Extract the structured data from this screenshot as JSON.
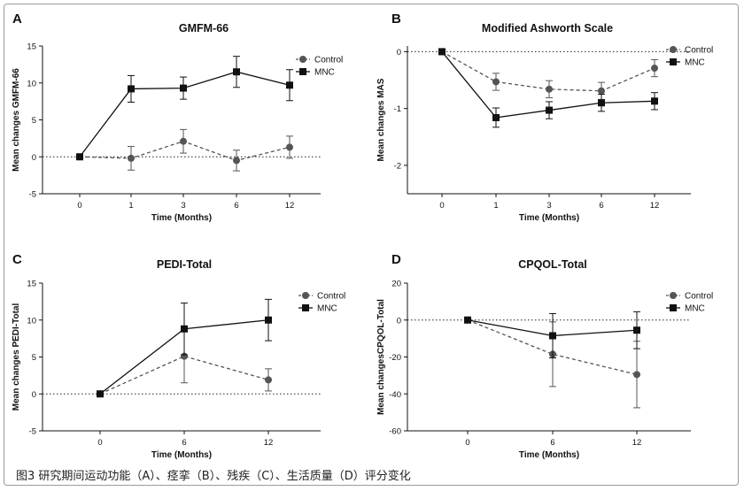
{
  "caption": "图3 研究期间运动功能（A）、痉挛（B）、残疾（C）、生活质量（D）评分变化",
  "colors": {
    "control": "#555555",
    "mnc": "#111111",
    "axis": "#111111"
  },
  "chart_data": [
    {
      "panel": "A",
      "type": "line",
      "title": "GMFM-66",
      "xlabel": "Time (Months)",
      "ylabel": "Mean changes GMFM-66",
      "categories": [
        "0",
        "1",
        "3",
        "6",
        "12"
      ],
      "yticks": [
        -5,
        0,
        5,
        10,
        15
      ],
      "ylim": [
        -5,
        15
      ],
      "zero_line": true,
      "legend_position": "top-right",
      "series": [
        {
          "name": "Control",
          "marker": "circle",
          "dashed": true,
          "values": [
            0,
            -0.2,
            2.1,
            -0.5,
            1.3
          ],
          "errors": [
            0,
            1.6,
            1.6,
            1.4,
            1.5
          ]
        },
        {
          "name": "MNC",
          "marker": "square",
          "dashed": false,
          "values": [
            0,
            9.2,
            9.3,
            11.5,
            9.7
          ],
          "errors": [
            0,
            1.8,
            1.5,
            2.1,
            2.1
          ]
        }
      ]
    },
    {
      "panel": "B",
      "type": "line",
      "title": "Modified Ashworth Scale",
      "xlabel": "Time (Months)",
      "ylabel": "Mean changes MAS",
      "categories": [
        "0",
        "1",
        "3",
        "6",
        "12"
      ],
      "yticks": [
        -2,
        -1,
        0
      ],
      "ylim": [
        -2.5,
        0.1
      ],
      "zero_line": true,
      "legend_position": "top-right",
      "series": [
        {
          "name": "Control",
          "marker": "circle",
          "dashed": true,
          "values": [
            0,
            -0.53,
            -0.66,
            -0.69,
            -0.29
          ],
          "errors": [
            0,
            0.15,
            0.15,
            0.15,
            0.15
          ]
        },
        {
          "name": "MNC",
          "marker": "square",
          "dashed": false,
          "values": [
            0,
            -1.16,
            -1.03,
            -0.9,
            -0.87
          ],
          "errors": [
            0,
            0.17,
            0.15,
            0.15,
            0.15
          ]
        }
      ]
    },
    {
      "panel": "C",
      "type": "line",
      "title": "PEDI-Total",
      "xlabel": "Time (Months)",
      "ylabel": "Mean changes PEDI-Total",
      "categories": [
        "0",
        "6",
        "12"
      ],
      "yticks": [
        -5,
        0,
        5,
        10,
        15
      ],
      "ylim": [
        -5,
        15
      ],
      "zero_line": true,
      "legend_position": "top-right",
      "series": [
        {
          "name": "Control",
          "marker": "circle",
          "dashed": true,
          "values": [
            0,
            5.1,
            1.9
          ],
          "errors": [
            0,
            3.6,
            1.5
          ]
        },
        {
          "name": "MNC",
          "marker": "square",
          "dashed": false,
          "values": [
            0,
            8.8,
            10.0
          ],
          "errors": [
            0,
            3.5,
            2.8
          ]
        }
      ]
    },
    {
      "panel": "D",
      "type": "line",
      "title": "CPQOL-Total",
      "xlabel": "Time (Months)",
      "ylabel": "Mean changesCPQOL-Total",
      "categories": [
        "0",
        "6",
        "12"
      ],
      "yticks": [
        -60,
        -40,
        -20,
        0,
        20
      ],
      "ylim": [
        -60,
        20
      ],
      "zero_line": true,
      "legend_position": "top-right",
      "series": [
        {
          "name": "Control",
          "marker": "circle",
          "dashed": true,
          "values": [
            0,
            -18.5,
            -29.5
          ],
          "errors": [
            0,
            17.5,
            18
          ]
        },
        {
          "name": "MNC",
          "marker": "square",
          "dashed": false,
          "values": [
            0,
            -8.5,
            -5.5
          ],
          "errors": [
            0,
            12,
            10
          ]
        }
      ]
    }
  ]
}
